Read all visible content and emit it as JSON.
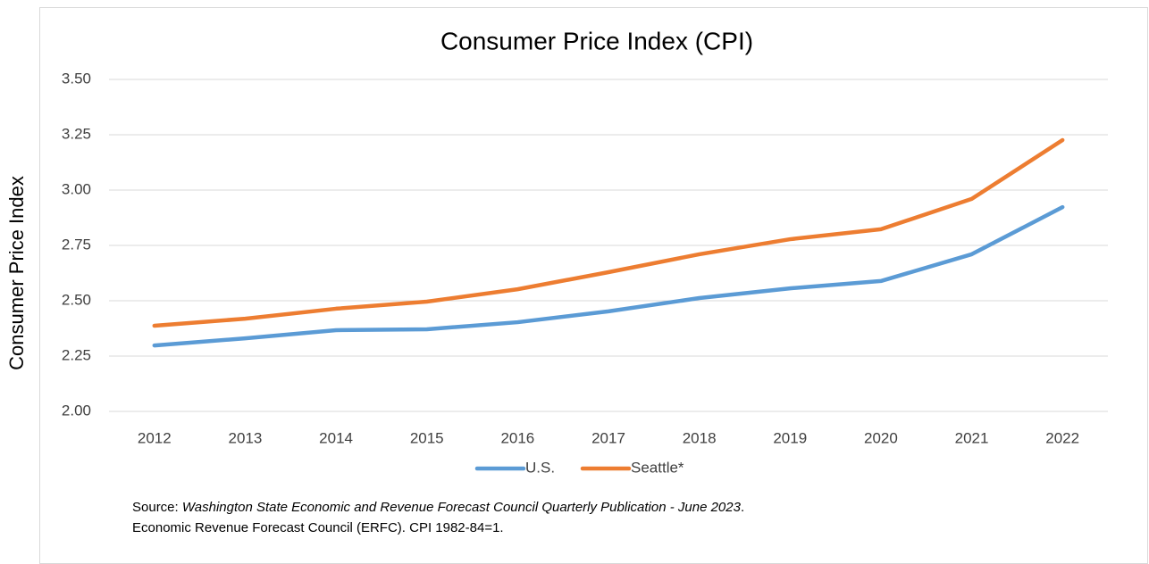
{
  "chart_data": {
    "type": "line",
    "title": "Consumer Price Index (CPI)",
    "y_label": "Consumer Price Index",
    "categories": [
      "2012",
      "2013",
      "2014",
      "2015",
      "2016",
      "2017",
      "2018",
      "2019",
      "2020",
      "2021",
      "2022"
    ],
    "series": [
      {
        "name": "U.S.",
        "color": "#5b9bd5",
        "values": [
          2.298,
          2.33,
          2.367,
          2.371,
          2.403,
          2.452,
          2.512,
          2.556,
          2.589,
          2.71,
          2.923
        ]
      },
      {
        "name": "Seattle*",
        "color": "#ed7d31",
        "values": [
          2.387,
          2.419,
          2.464,
          2.496,
          2.552,
          2.629,
          2.71,
          2.778,
          2.823,
          2.96,
          3.226
        ]
      }
    ],
    "ylim": [
      2.0,
      3.5
    ],
    "yticks": [
      {
        "value": 2.0,
        "label": "2.00"
      },
      {
        "value": 2.25,
        "label": "2.25"
      },
      {
        "value": 2.5,
        "label": "2.50"
      },
      {
        "value": 2.75,
        "label": "2.75"
      },
      {
        "value": 3.0,
        "label": "3.00"
      },
      {
        "value": 3.25,
        "label": "3.25"
      },
      {
        "value": 3.5,
        "label": "3.50"
      }
    ],
    "grid": true,
    "legend": "bottom",
    "source": {
      "prefix": "Source: ",
      "publication": "Washington State Economic and Revenue Forecast Council Quarterly Publication - June 2023",
      "suffix": ".",
      "line2": "Economic Revenue Forecast Council (ERFC). CPI 1982-84=1."
    }
  }
}
